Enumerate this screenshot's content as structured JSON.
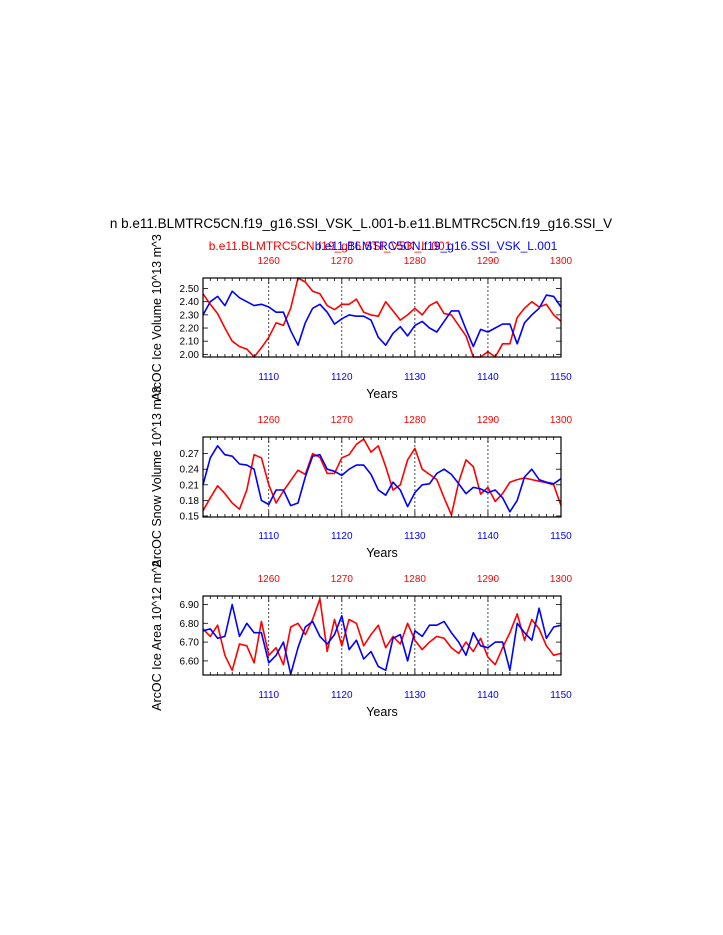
{
  "header": {
    "title": "n b.e11.BLMTRC5CN.f19_g16.SSI_VSK_L.001-b.e11.BLMTRC5CN.f19_g16.SSI_V",
    "legend_red": "b.e11.BLMTRC5CN.f19_g16.SSI_VSK_L.001",
    "legend_blue": "b.e11.BLMTRC5CN.f19_g16.SSI_VSK_L.001"
  },
  "colors": {
    "red": "#ff0000",
    "blue": "#0000ff",
    "axis": "#000000",
    "grid": "#000000"
  },
  "chart_data": [
    {
      "type": "line",
      "ylabel": "ArcOC Ice Volume 10^13 m^3",
      "xlabel": "Years",
      "bottom_ticks": [
        "1110",
        "1120",
        "1130",
        "1140",
        "1150"
      ],
      "top_ticks": [
        "1260",
        "1270",
        "1280",
        "1290",
        "1300"
      ],
      "ytick_labels": [
        "2.50",
        "2.40",
        "2.30",
        "2.20",
        "2.10",
        "2.00"
      ],
      "ylim": [
        1.98,
        2.58
      ],
      "xlim": [
        1101,
        1150
      ],
      "series": [
        {
          "color": "red",
          "x_offset": 150,
          "values": [
            2.46,
            2.38,
            2.31,
            2.2,
            2.1,
            2.06,
            2.04,
            1.98,
            2.05,
            2.13,
            2.24,
            2.22,
            2.35,
            2.58,
            2.55,
            2.48,
            2.46,
            2.37,
            2.34,
            2.38,
            2.38,
            2.42,
            2.32,
            2.3,
            2.29,
            2.4,
            2.33,
            2.26,
            2.3,
            2.35,
            2.3,
            2.37,
            2.4,
            2.31,
            2.3,
            2.22,
            2.14,
            1.98,
            1.98,
            2.02,
            1.98,
            2.08,
            2.08,
            2.28,
            2.35,
            2.4,
            2.36,
            2.38,
            2.3,
            2.25
          ]
        },
        {
          "color": "blue",
          "x_offset": 0,
          "values": [
            2.3,
            2.4,
            2.44,
            2.37,
            2.48,
            2.43,
            2.4,
            2.37,
            2.38,
            2.36,
            2.32,
            2.32,
            2.18,
            2.07,
            2.24,
            2.35,
            2.38,
            2.32,
            2.23,
            2.27,
            2.3,
            2.29,
            2.29,
            2.26,
            2.13,
            2.07,
            2.16,
            2.21,
            2.14,
            2.22,
            2.25,
            2.2,
            2.17,
            2.25,
            2.33,
            2.33,
            2.19,
            2.06,
            2.19,
            2.17,
            2.2,
            2.23,
            2.23,
            2.08,
            2.24,
            2.3,
            2.35,
            2.45,
            2.44,
            2.36
          ]
        }
      ]
    },
    {
      "type": "line",
      "ylabel": "ArcOC Snow Volume 10^13 m^3",
      "xlabel": "Years",
      "bottom_ticks": [
        "1110",
        "1120",
        "1130",
        "1140",
        "1150"
      ],
      "top_ticks": [
        "1260",
        "1270",
        "1280",
        "1290",
        "1300"
      ],
      "ytick_labels": [
        "0.27",
        "0.24",
        "0.21",
        "0.18",
        "0.15"
      ],
      "ylim": [
        0.148,
        0.302
      ],
      "xlim": [
        1101,
        1150
      ],
      "series": [
        {
          "color": "red",
          "x_offset": 150,
          "values": [
            0.16,
            0.185,
            0.208,
            0.193,
            0.175,
            0.163,
            0.2,
            0.268,
            0.262,
            0.21,
            0.175,
            0.198,
            0.218,
            0.238,
            0.23,
            0.27,
            0.263,
            0.232,
            0.232,
            0.262,
            0.268,
            0.288,
            0.298,
            0.273,
            0.285,
            0.245,
            0.2,
            0.21,
            0.258,
            0.28,
            0.24,
            0.23,
            0.22,
            0.185,
            0.152,
            0.215,
            0.258,
            0.245,
            0.192,
            0.205,
            0.178,
            0.193,
            0.215,
            0.22,
            0.223,
            0.22,
            0.217,
            0.214,
            0.21,
            0.17
          ]
        },
        {
          "color": "blue",
          "x_offset": 0,
          "values": [
            0.21,
            0.262,
            0.285,
            0.268,
            0.265,
            0.25,
            0.248,
            0.24,
            0.18,
            0.172,
            0.2,
            0.2,
            0.17,
            0.175,
            0.225,
            0.265,
            0.268,
            0.24,
            0.236,
            0.228,
            0.24,
            0.248,
            0.248,
            0.23,
            0.2,
            0.19,
            0.215,
            0.2,
            0.168,
            0.195,
            0.21,
            0.212,
            0.232,
            0.24,
            0.23,
            0.212,
            0.193,
            0.205,
            0.202,
            0.195,
            0.2,
            0.185,
            0.158,
            0.18,
            0.225,
            0.24,
            0.22,
            0.215,
            0.212,
            0.222
          ]
        }
      ]
    },
    {
      "type": "line",
      "ylabel": "ArcOC Ice Area 10^12 m^2",
      "xlabel": "Years",
      "bottom_ticks": [
        "1110",
        "1120",
        "1130",
        "1140",
        "1150"
      ],
      "top_ticks": [
        "1260",
        "1270",
        "1280",
        "1290",
        "1300"
      ],
      "ytick_labels": [
        "6.90",
        "6.80",
        "6.70",
        "6.60"
      ],
      "ylim": [
        6.525,
        6.945
      ],
      "xlim": [
        1101,
        1150
      ],
      "series": [
        {
          "color": "red",
          "x_offset": 150,
          "values": [
            6.77,
            6.73,
            6.79,
            6.63,
            6.55,
            6.69,
            6.68,
            6.59,
            6.81,
            6.63,
            6.67,
            6.58,
            6.78,
            6.8,
            6.74,
            6.82,
            6.93,
            6.65,
            6.82,
            6.68,
            6.82,
            6.8,
            6.68,
            6.74,
            6.79,
            6.67,
            6.73,
            6.69,
            6.8,
            6.71,
            6.66,
            6.7,
            6.73,
            6.72,
            6.67,
            6.64,
            6.7,
            6.65,
            6.72,
            6.62,
            6.58,
            6.67,
            6.75,
            6.85,
            6.71,
            6.82,
            6.77,
            6.68,
            6.63,
            6.64
          ]
        },
        {
          "color": "blue",
          "x_offset": 0,
          "values": [
            6.76,
            6.77,
            6.72,
            6.73,
            6.9,
            6.73,
            6.8,
            6.75,
            6.75,
            6.59,
            6.63,
            6.7,
            6.53,
            6.67,
            6.78,
            6.81,
            6.73,
            6.69,
            6.74,
            6.84,
            6.66,
            6.71,
            6.61,
            6.65,
            6.57,
            6.55,
            6.72,
            6.74,
            6.6,
            6.76,
            6.73,
            6.79,
            6.79,
            6.81,
            6.75,
            6.7,
            6.63,
            6.75,
            6.68,
            6.67,
            6.7,
            6.7,
            6.55,
            6.8,
            6.75,
            6.71,
            6.88,
            6.72,
            6.78,
            6.79
          ]
        }
      ]
    }
  ]
}
